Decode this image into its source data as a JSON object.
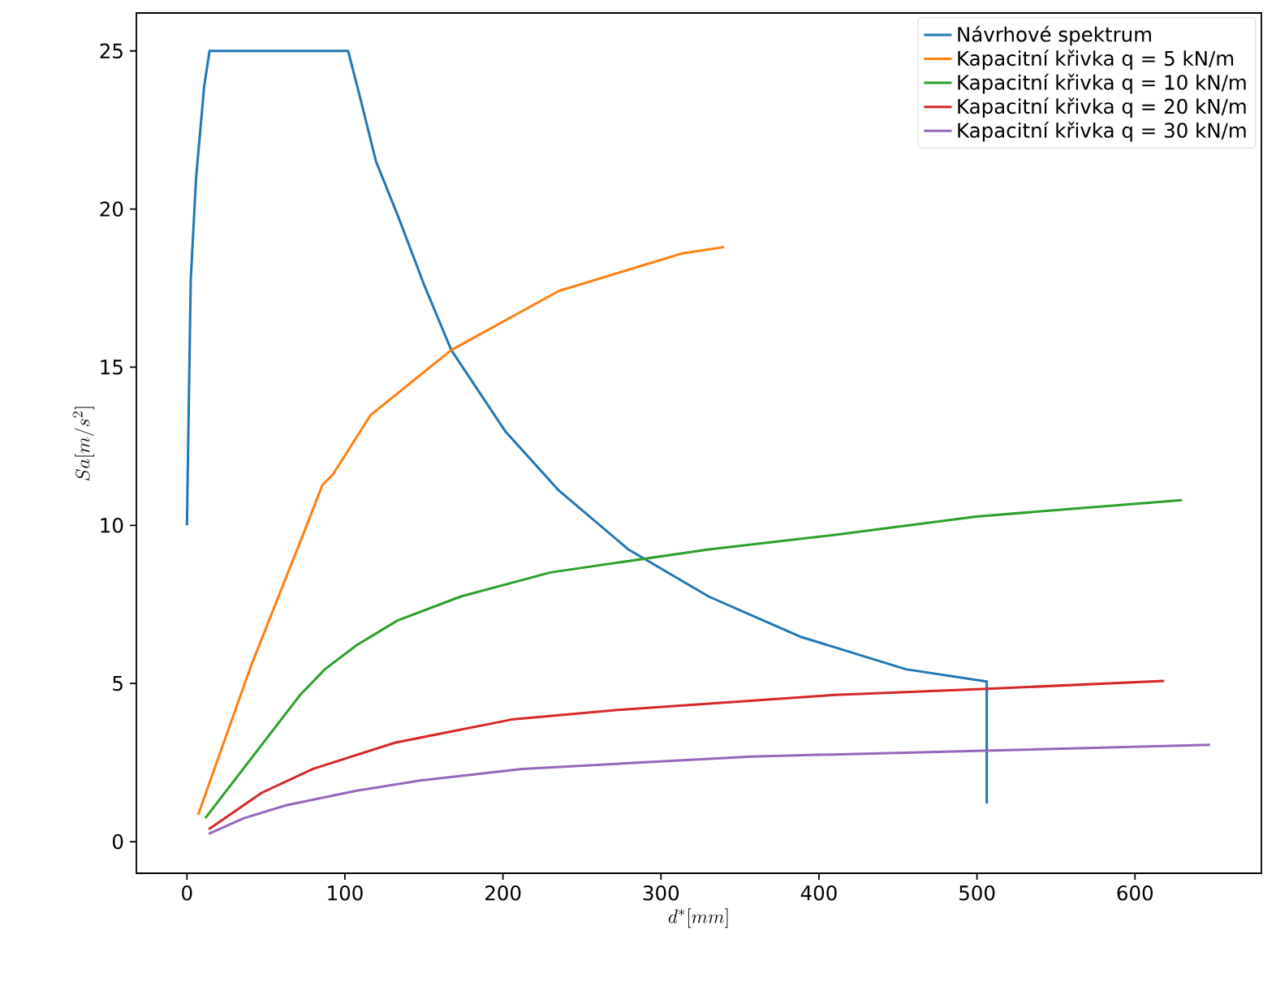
{
  "chart_data": {
    "type": "line",
    "xlabel": "d^*[mm]",
    "ylabel": "Sa[m/s^2]",
    "xlim": [
      -32,
      680
    ],
    "ylim": [
      -1,
      26.2
    ],
    "xticks": [
      0,
      100,
      200,
      300,
      400,
      500,
      600
    ],
    "yticks": [
      0,
      5,
      10,
      15,
      20,
      25
    ],
    "legend": "top right",
    "series": [
      {
        "name": "Návrhové spektrum",
        "color": "#1f77b4",
        "x": [
          0,
          2.4,
          5.8,
          10.9,
          14.3,
          102,
          109.5,
          119.7,
          133.4,
          150.3,
          167.3,
          201.4,
          235.4,
          279.6,
          330.2,
          388.1,
          455,
          506.2,
          506.2
        ],
        "values": [
          10,
          17.75,
          20.99,
          23.88,
          25,
          25,
          23.55,
          21.5,
          19.8,
          17.58,
          15.54,
          12.98,
          11.1,
          9.23,
          7.75,
          6.48,
          5.45,
          5.06,
          1.2
        ]
      },
      {
        "name": "Kapacitní křivka q = 5 kN/m",
        "color": "#ff7f0e",
        "x": [
          7.1,
          40.6,
          76.2,
          85.7,
          92.5,
          116.3,
          167.3,
          235.4,
          313.6,
          340
        ],
        "values": [
          0.85,
          5.56,
          10.05,
          11.27,
          11.62,
          13.49,
          15.54,
          17.41,
          18.6,
          18.8
        ]
      },
      {
        "name": "Kapacitní křivka q = 10 kN/m",
        "color": "#2ca02c",
        "x": [
          11.6,
          71.7,
          87.3,
          107.4,
          133.2,
          173.3,
          230,
          330.2,
          410.4,
          499.6,
          629.7
        ],
        "values": [
          0.74,
          4.64,
          5.45,
          6.21,
          6.99,
          7.75,
          8.51,
          9.24,
          9.7,
          10.28,
          10.8
        ]
      },
      {
        "name": "Kapacitní křivka q = 20 kN/m",
        "color": "#d62728",
        "x": [
          13.8,
          47.2,
          79.8,
          131.9,
          205.4,
          276.7,
          410.4,
          506.2,
          618.5
        ],
        "values": [
          0.39,
          1.54,
          2.3,
          3.13,
          3.86,
          4.18,
          4.64,
          4.83,
          5.08
        ]
      },
      {
        "name": "Kapacitní křivka q = 30 kN/m",
        "color": "#9467bd",
        "x": [
          13.8,
          36.1,
          62.8,
          107.4,
          147.5,
          212.1,
          357,
          499.6,
          647.5
        ],
        "values": [
          0.25,
          0.74,
          1.15,
          1.61,
          1.93,
          2.3,
          2.69,
          2.87,
          3.06
        ]
      }
    ]
  }
}
